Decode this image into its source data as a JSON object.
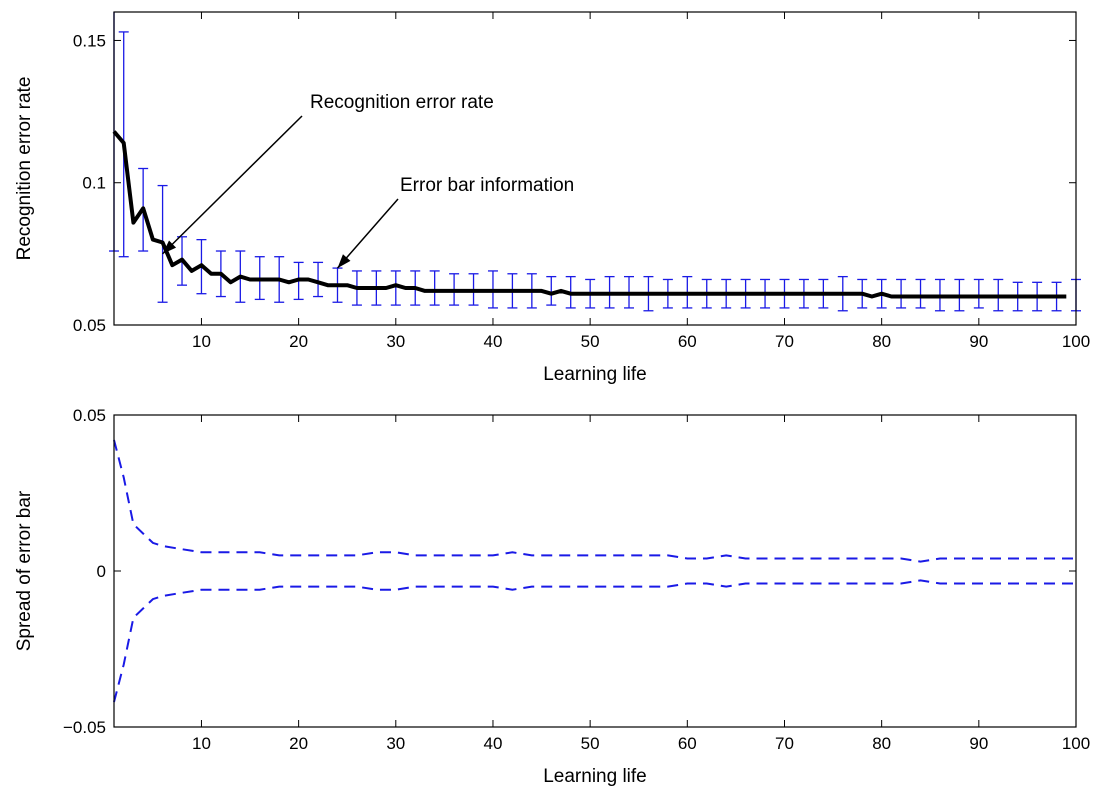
{
  "chart_data": [
    {
      "type": "line",
      "title": "",
      "xlabel": "Learning life",
      "ylabel": "Recognition error rate",
      "xlim": [
        1,
        100
      ],
      "ylim": [
        0.05,
        0.16
      ],
      "xticks": [
        10,
        20,
        30,
        40,
        50,
        60,
        70,
        80,
        90,
        100
      ],
      "yticks": [
        0.05,
        0.1,
        0.15
      ],
      "ytick_labels": [
        "0.05",
        "0.1",
        "0.15"
      ],
      "grid": false,
      "series": [
        {
          "x": [
            1,
            2,
            3,
            4,
            5,
            6,
            7,
            8,
            9,
            10,
            11,
            12,
            13,
            14,
            15,
            16,
            17,
            18,
            19,
            20,
            21,
            22,
            23,
            24,
            25,
            26,
            27,
            28,
            29,
            30,
            31,
            32,
            33,
            34,
            35,
            36,
            37,
            38,
            39,
            40,
            41,
            42,
            43,
            44,
            45,
            46,
            47,
            48,
            49,
            50,
            51,
            52,
            53,
            54,
            55,
            56,
            57,
            58,
            59,
            60,
            61,
            62,
            63,
            64,
            65,
            66,
            67,
            68,
            69,
            70,
            71,
            72,
            73,
            74,
            75,
            76,
            77,
            78,
            79,
            80,
            81,
            82,
            83,
            84,
            85,
            86,
            87,
            88,
            89,
            90,
            91,
            92,
            93,
            94,
            95,
            96,
            97,
            98,
            99
          ],
          "y": [
            0.118,
            0.114,
            0.086,
            0.091,
            0.08,
            0.079,
            0.071,
            0.073,
            0.069,
            0.071,
            0.068,
            0.068,
            0.065,
            0.067,
            0.066,
            0.066,
            0.066,
            0.066,
            0.065,
            0.066,
            0.066,
            0.065,
            0.064,
            0.064,
            0.064,
            0.063,
            0.063,
            0.063,
            0.063,
            0.064,
            0.063,
            0.063,
            0.062,
            0.062,
            0.062,
            0.062,
            0.062,
            0.062,
            0.062,
            0.062,
            0.062,
            0.062,
            0.062,
            0.062,
            0.062,
            0.061,
            0.062,
            0.061,
            0.061,
            0.061,
            0.061,
            0.061,
            0.061,
            0.061,
            0.061,
            0.061,
            0.061,
            0.061,
            0.061,
            0.061,
            0.061,
            0.061,
            0.061,
            0.061,
            0.061,
            0.061,
            0.061,
            0.061,
            0.061,
            0.061,
            0.061,
            0.061,
            0.061,
            0.061,
            0.061,
            0.061,
            0.061,
            0.061,
            0.06,
            0.061,
            0.06,
            0.06,
            0.06,
            0.06,
            0.06,
            0.06,
            0.06,
            0.06,
            0.06,
            0.06,
            0.06,
            0.06,
            0.06,
            0.06,
            0.06,
            0.06,
            0.06,
            0.06,
            0.06
          ]
        },
        {
          "x": [
            1,
            2,
            4,
            6,
            8,
            10,
            12,
            14,
            16,
            18,
            20,
            22,
            24,
            26,
            28,
            30,
            32,
            34,
            36,
            38,
            40,
            42,
            44,
            46,
            48,
            50,
            52,
            54,
            56,
            58,
            60,
            62,
            64,
            66,
            68,
            70,
            72,
            74,
            76,
            78,
            80,
            82,
            84,
            86,
            88,
            90,
            92,
            94,
            96,
            98,
            100
          ],
          "y_low": [
            0.076,
            0.074,
            0.076,
            0.058,
            0.064,
            0.061,
            0.06,
            0.058,
            0.059,
            0.058,
            0.059,
            0.06,
            0.058,
            0.057,
            0.057,
            0.057,
            0.057,
            0.057,
            0.057,
            0.057,
            0.056,
            0.056,
            0.056,
            0.057,
            0.056,
            0.056,
            0.056,
            0.056,
            0.055,
            0.056,
            0.056,
            0.056,
            0.056,
            0.056,
            0.056,
            0.056,
            0.056,
            0.056,
            0.055,
            0.056,
            0.056,
            0.056,
            0.056,
            0.055,
            0.055,
            0.056,
            0.055,
            0.055,
            0.055,
            0.055,
            0.055
          ],
          "y_high": [
            0.161,
            0.153,
            0.105,
            0.099,
            0.081,
            0.08,
            0.076,
            0.076,
            0.074,
            0.074,
            0.072,
            0.072,
            0.07,
            0.069,
            0.069,
            0.069,
            0.069,
            0.069,
            0.068,
            0.068,
            0.069,
            0.068,
            0.068,
            0.067,
            0.067,
            0.066,
            0.067,
            0.067,
            0.067,
            0.066,
            0.067,
            0.066,
            0.066,
            0.066,
            0.066,
            0.066,
            0.066,
            0.066,
            0.067,
            0.066,
            0.066,
            0.066,
            0.066,
            0.066,
            0.066,
            0.066,
            0.066,
            0.065,
            0.065,
            0.065,
            0.066
          ]
        }
      ],
      "annotations": [
        {
          "text": "Recognition error rate",
          "target_x": 6,
          "target_y": 0.075
        },
        {
          "text": "Error bar information",
          "target_x": 24,
          "target_y": 0.07
        }
      ]
    },
    {
      "type": "line",
      "title": "",
      "xlabel": "Learning life",
      "ylabel": "Spread of error bar",
      "xlim": [
        1,
        100
      ],
      "ylim": [
        -0.05,
        0.05
      ],
      "xticks": [
        10,
        20,
        30,
        40,
        50,
        60,
        70,
        80,
        90,
        100
      ],
      "yticks": [
        -0.05,
        0,
        0.05
      ],
      "ytick_labels": [
        "−0.05",
        "0",
        "0.05"
      ],
      "grid": false,
      "series": [
        {
          "x": [
            1,
            2,
            3,
            4,
            5,
            6,
            8,
            10,
            12,
            14,
            16,
            18,
            20,
            22,
            24,
            26,
            28,
            30,
            32,
            34,
            36,
            38,
            40,
            42,
            44,
            46,
            48,
            50,
            52,
            54,
            56,
            58,
            60,
            62,
            64,
            66,
            68,
            70,
            72,
            74,
            76,
            78,
            80,
            82,
            84,
            86,
            88,
            90,
            92,
            94,
            96,
            98,
            100
          ],
          "y": [
            0.042,
            0.03,
            0.015,
            0.012,
            0.009,
            0.008,
            0.007,
            0.006,
            0.006,
            0.006,
            0.006,
            0.005,
            0.005,
            0.005,
            0.005,
            0.005,
            0.006,
            0.006,
            0.005,
            0.005,
            0.005,
            0.005,
            0.005,
            0.006,
            0.005,
            0.005,
            0.005,
            0.005,
            0.005,
            0.005,
            0.005,
            0.005,
            0.004,
            0.004,
            0.005,
            0.004,
            0.004,
            0.004,
            0.004,
            0.004,
            0.004,
            0.004,
            0.004,
            0.004,
            0.003,
            0.004,
            0.004,
            0.004,
            0.004,
            0.004,
            0.004,
            0.004,
            0.004
          ]
        },
        {
          "x": [
            1,
            2,
            3,
            4,
            5,
            6,
            8,
            10,
            12,
            14,
            16,
            18,
            20,
            22,
            24,
            26,
            28,
            30,
            32,
            34,
            36,
            38,
            40,
            42,
            44,
            46,
            48,
            50,
            52,
            54,
            56,
            58,
            60,
            62,
            64,
            66,
            68,
            70,
            72,
            74,
            76,
            78,
            80,
            82,
            84,
            86,
            88,
            90,
            92,
            94,
            96,
            98,
            100
          ],
          "y": [
            -0.042,
            -0.03,
            -0.015,
            -0.012,
            -0.009,
            -0.008,
            -0.007,
            -0.006,
            -0.006,
            -0.006,
            -0.006,
            -0.005,
            -0.005,
            -0.005,
            -0.005,
            -0.005,
            -0.006,
            -0.006,
            -0.005,
            -0.005,
            -0.005,
            -0.005,
            -0.005,
            -0.006,
            -0.005,
            -0.005,
            -0.005,
            -0.005,
            -0.005,
            -0.005,
            -0.005,
            -0.005,
            -0.004,
            -0.004,
            -0.005,
            -0.004,
            -0.004,
            -0.004,
            -0.004,
            -0.004,
            -0.004,
            -0.004,
            -0.004,
            -0.004,
            -0.003,
            -0.004,
            -0.004,
            -0.004,
            -0.004,
            -0.004,
            -0.004,
            -0.004,
            -0.004
          ]
        }
      ]
    }
  ]
}
